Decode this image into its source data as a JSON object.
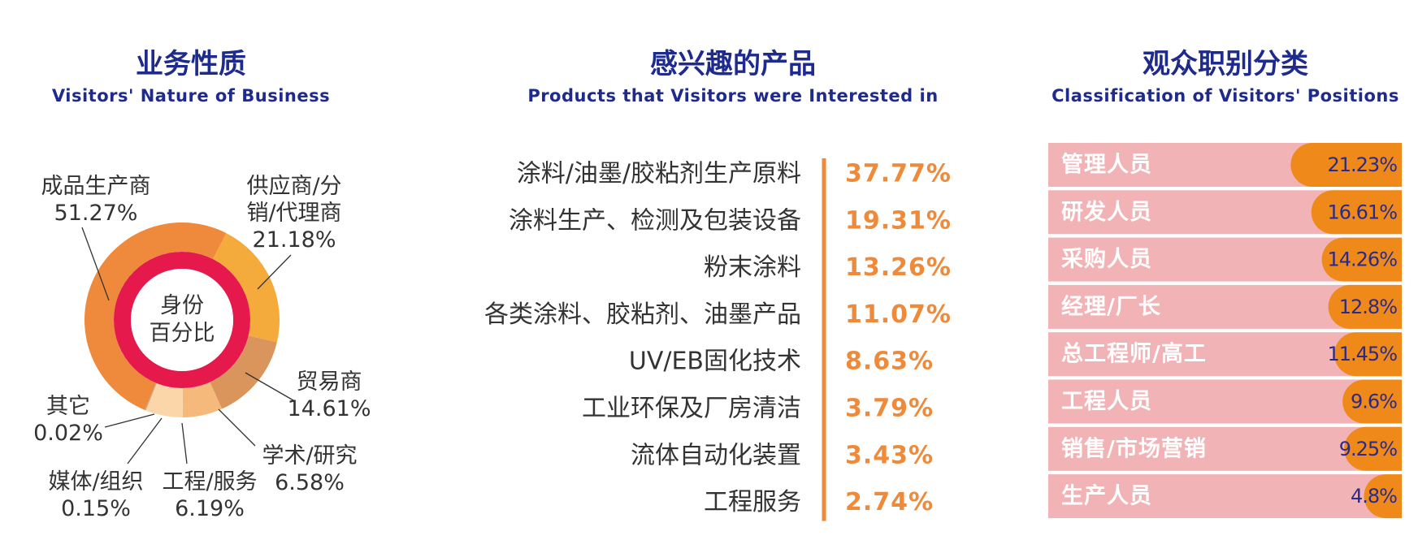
{
  "chart_data": [
    {
      "type": "pie",
      "title": "业务性质",
      "subtitle": "Visitors' Nature of Business",
      "center_label": [
        "身份",
        "百分比"
      ],
      "categories": [
        "成品生产商",
        "供应商/分销/代理商",
        "贸易商",
        "学术/研究",
        "工程/服务",
        "媒体/组织",
        "其它"
      ],
      "values": [
        51.27,
        21.18,
        14.61,
        6.58,
        6.19,
        0.15,
        0.02
      ],
      "value_labels": [
        "51.27%",
        "21.18%",
        "14.61%",
        "6.58%",
        "6.19%",
        "0.15%",
        "0.02%"
      ],
      "colors": [
        "#ef8a3c",
        "#f5aa3c",
        "#d9955c",
        "#f6b97c",
        "#fbd6a8",
        "#c9a27e",
        "#9a9a9a"
      ],
      "ring_color": "#e5194b"
    },
    {
      "type": "list",
      "title": "感兴趣的产品",
      "subtitle": "Products that Visitors were Interested in",
      "categories": [
        "涂料/油墨/胶粘剂生产原料",
        "涂料生产、检测及包装设备",
        "粉末涂料",
        "各类涂料、胶粘剂、油墨产品",
        "UV/EB固化技术",
        "工业环保及厂房清洁",
        "流体自动化装置",
        "工程服务"
      ],
      "values": [
        37.77,
        19.31,
        13.26,
        11.07,
        8.63,
        3.79,
        3.43,
        2.74
      ],
      "value_labels": [
        "37.77%",
        "19.31%",
        "13.26%",
        "11.07%",
        "8.63%",
        "3.79%",
        "3.43%",
        "2.74%"
      ],
      "color": "#ee8a3a"
    },
    {
      "type": "bar",
      "title": "观众职别分类",
      "subtitle": "Classification of Visitors' Positions",
      "categories": [
        "管理人员",
        "研发人员",
        "采购人员",
        "经理/厂长",
        "总工程师/高工",
        "工程人员",
        "销售/市场营销",
        "生产人员"
      ],
      "values": [
        21.23,
        16.61,
        14.26,
        12.8,
        11.45,
        9.6,
        9.25,
        4.8
      ],
      "value_labels": [
        "21.23%",
        "16.61%",
        "14.26%",
        "12.8%",
        "11.45%",
        "9.6%",
        "9.25%",
        "4.8%"
      ],
      "color": "#ef8a1a",
      "background": "#f2b3b6"
    }
  ]
}
